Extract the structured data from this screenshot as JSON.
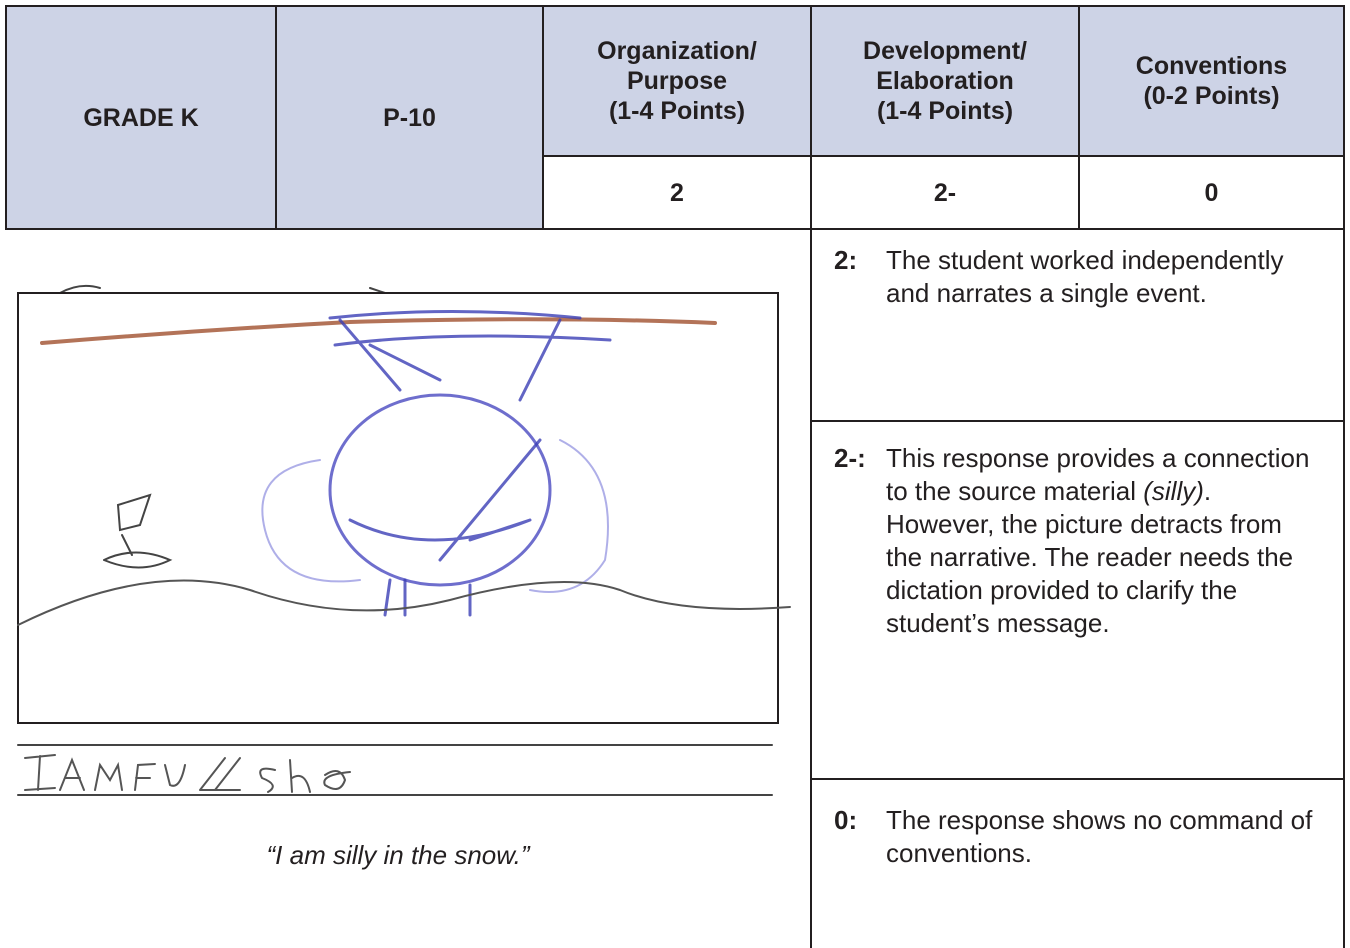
{
  "table": {
    "header": [
      {
        "lines": [
          "GRADE K"
        ]
      },
      {
        "lines": [
          "P-10"
        ]
      },
      {
        "lines": [
          "Organization/",
          "Purpose",
          "(1-4 Points)"
        ]
      },
      {
        "lines": [
          "Development/",
          "Elaboration",
          "(1-4 Points)"
        ]
      },
      {
        "lines": [
          "Conventions",
          "(0-2 Points)"
        ]
      }
    ],
    "scores": [
      "2",
      "2-",
      "0"
    ]
  },
  "sample": {
    "caption": "“I am silly in the snow.”"
  },
  "comments": [
    {
      "label": "2:",
      "parts": [
        "The student worked independently and narrates a single event."
      ]
    },
    {
      "label": "2-:",
      "parts": [
        "This response provides a connection to the source material ",
        "(silly)",
        ". However, the picture detracts from the narrative. The reader needs the dictation provided to clarify the student’s message."
      ]
    },
    {
      "label": "0:",
      "parts": [
        "The response shows no command of conventions."
      ]
    }
  ]
}
